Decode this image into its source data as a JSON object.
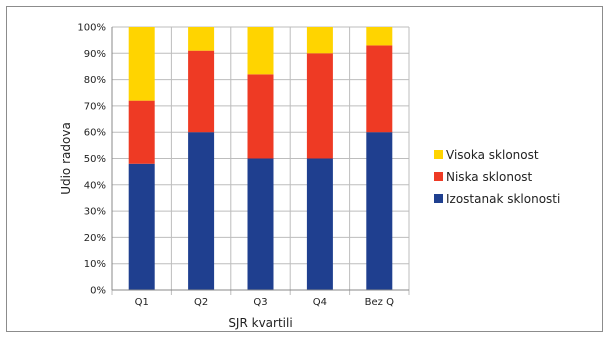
{
  "chart_data": {
    "type": "bar",
    "stacked": true,
    "percent": true,
    "categories": [
      "Q1",
      "Q2",
      "Q3",
      "Q4",
      "Bez Q"
    ],
    "series": [
      {
        "name": "Izostanak sklonosti",
        "color": "#1f3f8f",
        "values": [
          48,
          60,
          50,
          50,
          60
        ]
      },
      {
        "name": "Niska sklonost",
        "color": "#ee3a24",
        "values": [
          24,
          31,
          32,
          40,
          33
        ]
      },
      {
        "name": "Visoka sklonost",
        "color": "#ffd400",
        "values": [
          28,
          9,
          18,
          10,
          7
        ]
      }
    ],
    "ylim": [
      0,
      100
    ],
    "yticks": [
      "0%",
      "10%",
      "20%",
      "30%",
      "40%",
      "50%",
      "60%",
      "70%",
      "80%",
      "90%",
      "100%"
    ],
    "xlabel": "SJR kvartili",
    "ylabel": "Udio radova",
    "grid": true,
    "legend_position": "right",
    "legend_order": [
      "Visoka sklonost",
      "Niska sklonost",
      "Izostanak sklonosti"
    ]
  }
}
